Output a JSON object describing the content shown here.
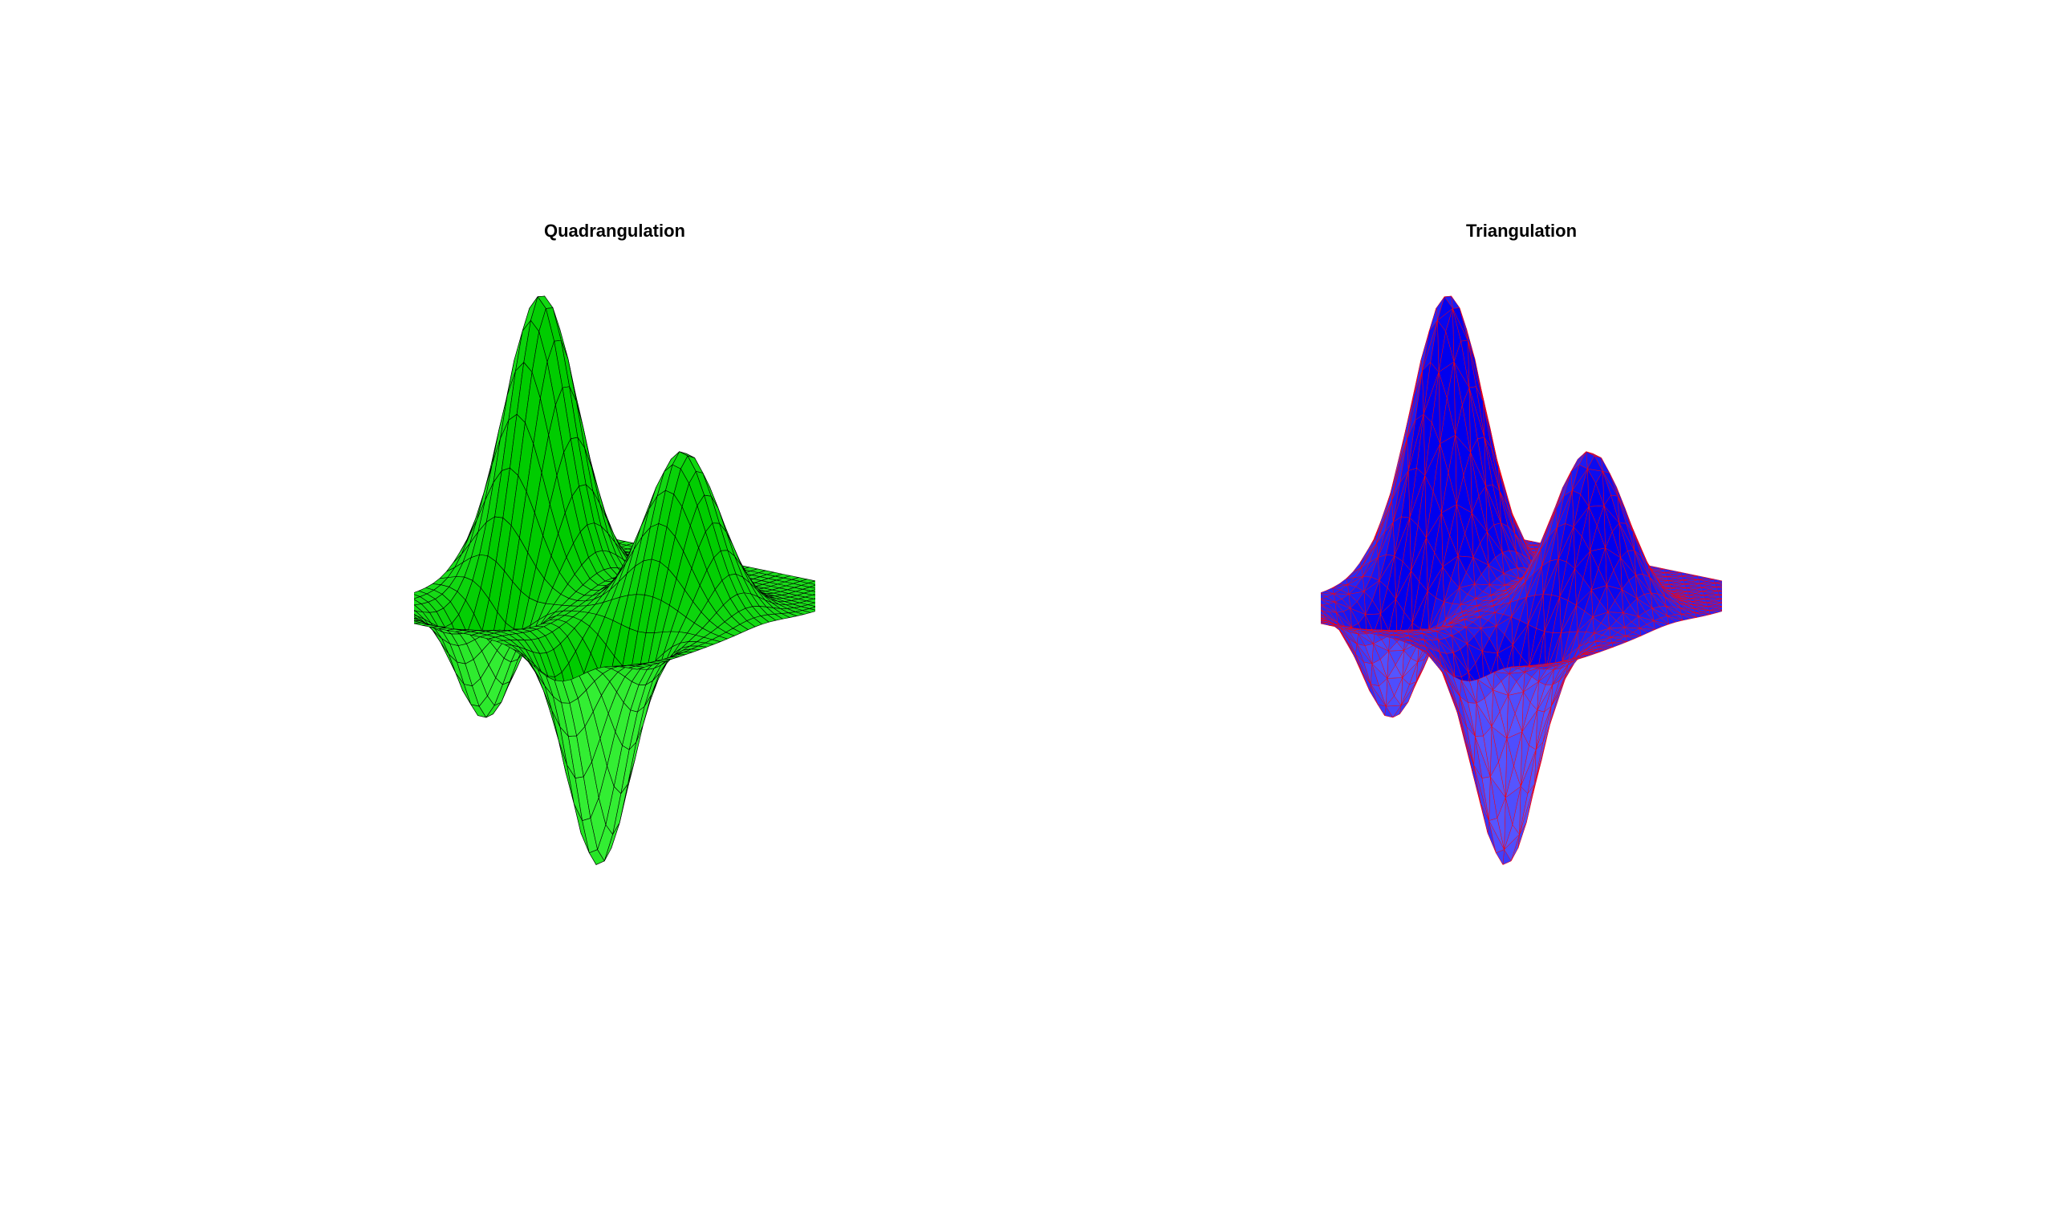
{
  "figure": {
    "panels": [
      {
        "title": "Quadrangulation",
        "mesh_type": "quad",
        "face_color": "#00cc00",
        "face_highlight": "#33ee33",
        "edge_color": "#000000"
      },
      {
        "title": "Triangulation",
        "mesh_type": "triangle",
        "face_color": "#0000ee",
        "face_highlight": "#5555ff",
        "edge_color": "#ff0000"
      }
    ]
  }
}
